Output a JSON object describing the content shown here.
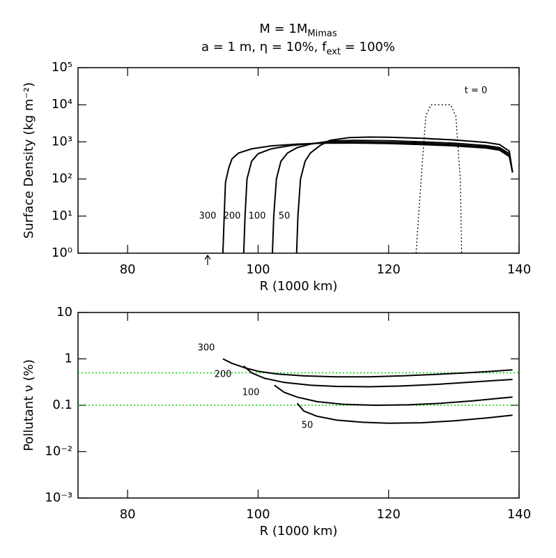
{
  "chart_data": [
    {
      "type": "line",
      "title": {
        "line1": [
          "M = 1M",
          "Mimas"
        ],
        "line2": [
          "a = 1 m, η = 10%, f",
          "ext",
          " = 100%"
        ]
      },
      "xlabel": "R (1000 km)",
      "ylabel": "Surface Density (kg m⁻²)",
      "xlim": [
        72.4,
        140
      ],
      "xticks": [
        80,
        100,
        120,
        140
      ],
      "ylim": [
        1,
        100000
      ],
      "log_y": true,
      "yticks": [
        {
          "value": 1,
          "label": "10⁰"
        },
        {
          "value": 10,
          "label": "10¹"
        },
        {
          "value": 100,
          "label": "10²"
        },
        {
          "value": 1000,
          "label": "10³"
        },
        {
          "value": 10000,
          "label": "10⁴"
        },
        {
          "value": 100000,
          "label": "10⁵"
        }
      ],
      "series": [
        {
          "name": "300",
          "color": "#000000",
          "x": [
            94.6,
            94.8,
            95,
            95.5,
            96,
            97,
            99,
            102,
            106,
            110,
            115,
            120,
            125,
            130,
            135,
            137,
            138.5,
            139
          ],
          "values": [
            1,
            10,
            80,
            200,
            350,
            500,
            650,
            780,
            870,
            920,
            930,
            900,
            850,
            780,
            680,
            600,
            400,
            150
          ]
        },
        {
          "name": "200",
          "color": "#000000",
          "x": [
            97.8,
            98,
            98.3,
            99,
            100,
            102,
            105,
            110,
            115,
            120,
            125,
            130,
            135,
            137,
            138.5,
            139
          ],
          "values": [
            1,
            10,
            100,
            300,
            480,
            650,
            800,
            960,
            1000,
            970,
            920,
            840,
            730,
            650,
            450,
            150
          ]
        },
        {
          "name": "100",
          "color": "#000000",
          "x": [
            102.2,
            102.4,
            102.8,
            103.5,
            104.5,
            106,
            108,
            111,
            115,
            120,
            125,
            130,
            135,
            137,
            138.5,
            139
          ],
          "values": [
            1,
            10,
            100,
            300,
            500,
            700,
            870,
            1050,
            1100,
            1070,
            1000,
            920,
            790,
            700,
            480,
            150
          ]
        },
        {
          "name": "50",
          "color": "#000000",
          "x": [
            105.9,
            106.1,
            106.5,
            107.2,
            108,
            109.5,
            111,
            114,
            117,
            120,
            125,
            130,
            135,
            137,
            138.5,
            139
          ],
          "values": [
            1,
            10,
            100,
            300,
            500,
            800,
            1100,
            1300,
            1350,
            1330,
            1250,
            1130,
            960,
            850,
            560,
            150
          ]
        },
        {
          "name": "t = 0",
          "color": "#000000",
          "dash": "dotted",
          "x": [
            124.2,
            125,
            125.7,
            126.5,
            129.5,
            130.3,
            131,
            131.2
          ],
          "values": [
            1,
            100,
            5000,
            10000,
            10000,
            5000,
            100,
            1
          ]
        }
      ]
    },
    {
      "type": "line",
      "xlabel": "R (1000 km)",
      "ylabel": "Pollutant ν (%)",
      "xlim": [
        72.4,
        140
      ],
      "xticks": [
        80,
        100,
        120,
        140
      ],
      "ylim": [
        0.001,
        10
      ],
      "log_y": true,
      "yticks": [
        {
          "value": 0.001,
          "label": "10⁻³"
        },
        {
          "value": 0.01,
          "label": "10⁻²"
        },
        0.1,
        1,
        10
      ],
      "hlines": {
        "values": [
          0.5,
          0.1
        ],
        "color": "#00cc00"
      },
      "series": [
        {
          "name": "300",
          "color": "#000000",
          "x": [
            94.6,
            96,
            98,
            100,
            103,
            107,
            112,
            117,
            122,
            127,
            132,
            136,
            139
          ],
          "values": [
            1.0,
            0.8,
            0.64,
            0.54,
            0.47,
            0.43,
            0.41,
            0.41,
            0.43,
            0.46,
            0.5,
            0.54,
            0.58
          ]
        },
        {
          "name": "200",
          "color": "#000000",
          "x": [
            97.8,
            99,
            101,
            104,
            108,
            112,
            117,
            122,
            127,
            132,
            136,
            139
          ],
          "values": [
            0.7,
            0.5,
            0.38,
            0.31,
            0.27,
            0.255,
            0.25,
            0.26,
            0.28,
            0.31,
            0.34,
            0.36
          ]
        },
        {
          "name": "100",
          "color": "#000000",
          "x": [
            102.5,
            104,
            106,
            109,
            113,
            118,
            123,
            128,
            133,
            136,
            139
          ],
          "values": [
            0.27,
            0.19,
            0.15,
            0.12,
            0.105,
            0.1,
            0.102,
            0.11,
            0.125,
            0.137,
            0.15
          ]
        },
        {
          "name": "50",
          "color": "#000000",
          "x": [
            106,
            107,
            109,
            112,
            116,
            120,
            125,
            130,
            135,
            139
          ],
          "values": [
            0.11,
            0.075,
            0.058,
            0.048,
            0.043,
            0.041,
            0.042,
            0.046,
            0.053,
            0.061
          ]
        }
      ]
    }
  ]
}
